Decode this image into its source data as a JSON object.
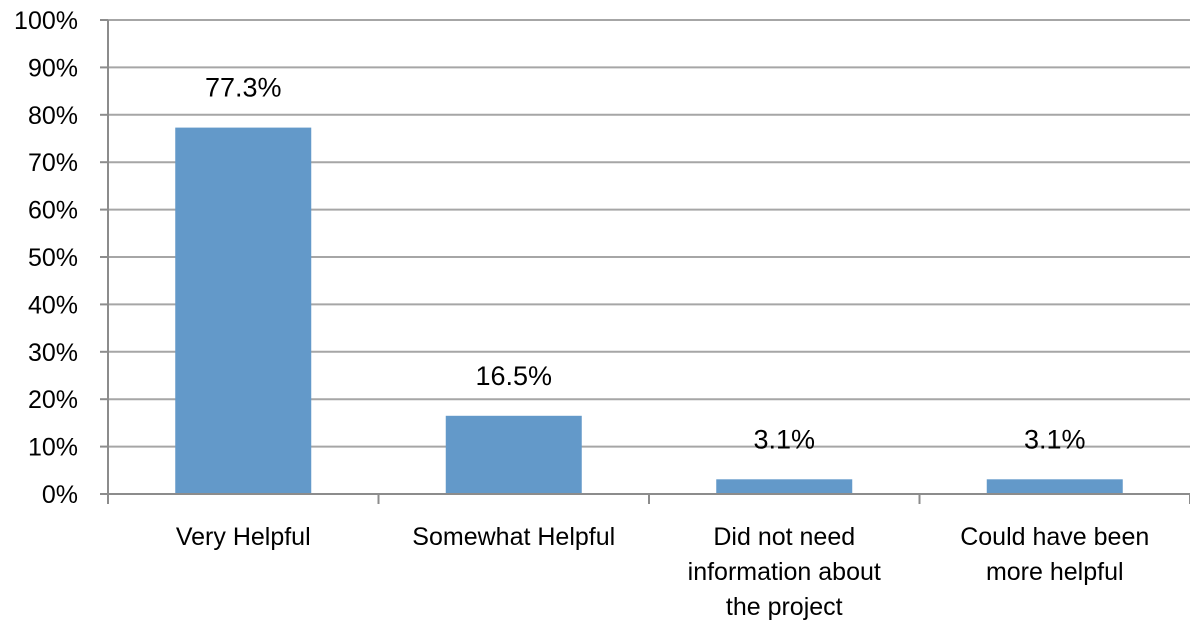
{
  "chart_data": {
    "type": "bar",
    "categories": [
      "Very Helpful",
      "Somewhat Helpful",
      "Did not need information about the project",
      "Could have been more helpful"
    ],
    "category_lines": [
      [
        "Very Helpful"
      ],
      [
        "Somewhat Helpful"
      ],
      [
        "Did not need",
        "information about",
        "the project"
      ],
      [
        "Could have been",
        "more helpful"
      ]
    ],
    "values": [
      77.3,
      16.5,
      3.1,
      3.1
    ],
    "data_labels": [
      "77.3%",
      "16.5%",
      "3.1%",
      "3.1%"
    ],
    "ylim": [
      0,
      100
    ],
    "yticks": [
      0,
      10,
      20,
      30,
      40,
      50,
      60,
      70,
      80,
      90,
      100
    ],
    "ytick_labels": [
      "0%",
      "10%",
      "20%",
      "30%",
      "40%",
      "50%",
      "60%",
      "70%",
      "80%",
      "90%",
      "100%"
    ],
    "grid": true,
    "legend": "none",
    "colors": {
      "bar": "#6399c9",
      "grid": "#a6a6a6",
      "axis": "#8c8c8c"
    }
  }
}
